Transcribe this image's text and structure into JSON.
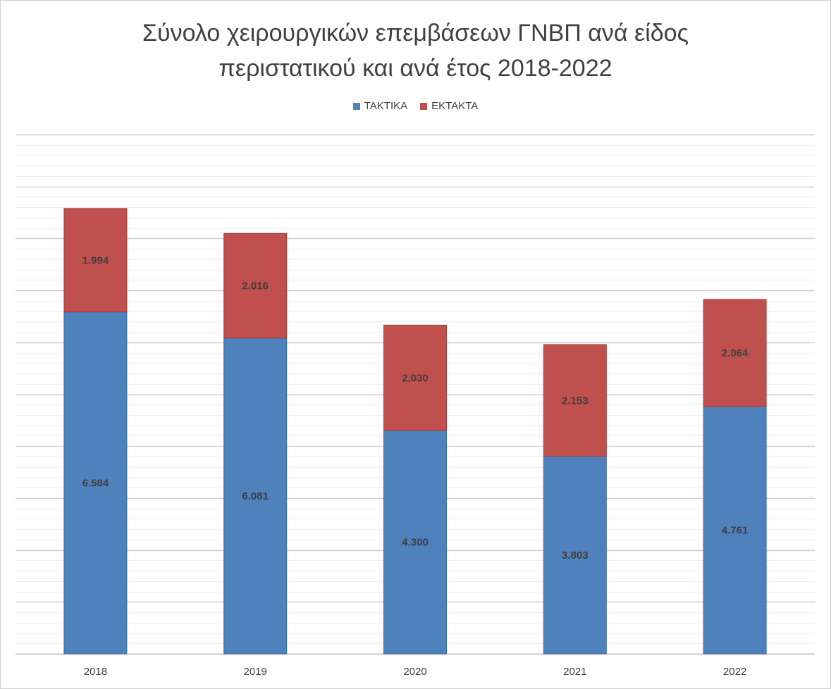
{
  "chart_data": {
    "type": "bar",
    "stacked": true,
    "title_line1": "Σύνολο χειρουργικών επεμβάσεων ΓΝΒΠ ανά είδος",
    "title_line2": "περιστατικού και ανά έτος 2018-2022",
    "categories": [
      "2018",
      "2019",
      "2020",
      "2021",
      "2022"
    ],
    "series": [
      {
        "name": "ΤΑΚΤΙΚΑ",
        "color": "#4F81BD",
        "values": [
          6584,
          6081,
          4300,
          3803,
          4761
        ],
        "labels": [
          "6.584",
          "6.081",
          "4.300",
          "3.803",
          "4.761"
        ]
      },
      {
        "name": "ΕΚΤΑΚΤΑ",
        "color": "#C0504D",
        "values": [
          1994,
          2016,
          2030,
          2153,
          2064
        ],
        "labels": [
          "1.994",
          "2.016",
          "2.030",
          "2.153",
          "2.064"
        ]
      }
    ],
    "ylim": [
      0,
      10000
    ],
    "grid": true,
    "legend_position": "top"
  }
}
